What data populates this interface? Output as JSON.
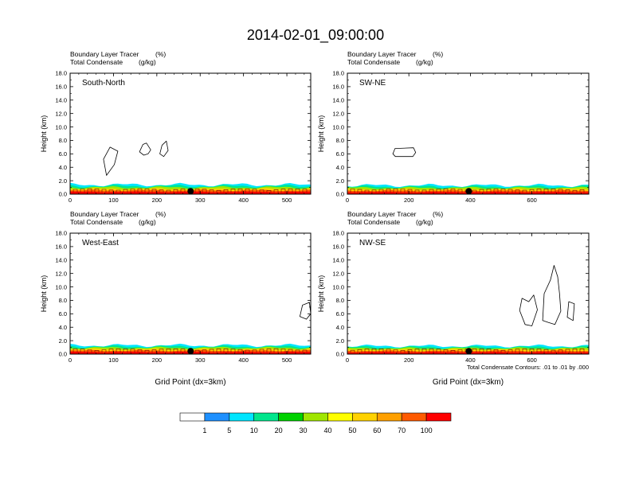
{
  "figure": {
    "title": "2014-02-01_09:00:00",
    "footnote": "Total Condensate Contours: .01 to .01 by .000"
  },
  "chart_data": {
    "type": "heatmap",
    "title": "2014-02-01_09:00:00",
    "panels": [
      {
        "name": "South-North",
        "label": "South-North",
        "field1": "Boundary Layer Tracer",
        "units1": "(%)",
        "field2": "Total Condensate",
        "units2": "(g/kg)",
        "ylabel": "Height (km)",
        "xlabel": "",
        "xlim": [
          0,
          555
        ],
        "xticks": [
          0,
          100,
          200,
          300,
          400,
          500
        ],
        "ylim": [
          0,
          18
        ],
        "yticks": [
          "0.0",
          "2.0",
          "4.0",
          "6.0",
          "8.0",
          "10.0",
          "12.0",
          "14.0",
          "16.0",
          "18.0"
        ],
        "marker_x": 278,
        "bl_top_km": 1.4,
        "cloud_contours": [
          [
            [
              77,
              5.2
            ],
            [
              92,
              7.0
            ],
            [
              110,
              6.4
            ],
            [
              102,
              4.4
            ],
            [
              84,
              2.8
            ]
          ],
          [
            [
              160,
              6.3
            ],
            [
              168,
              7.4
            ],
            [
              176,
              7.6
            ],
            [
              186,
              6.6
            ],
            [
              180,
              6.0
            ],
            [
              170,
              5.8
            ]
          ],
          [
            [
              207,
              6.0
            ],
            [
              212,
              7.3
            ],
            [
              222,
              7.9
            ],
            [
              226,
              6.5
            ],
            [
              216,
              5.6
            ]
          ]
        ]
      },
      {
        "name": "SW-NE",
        "label": "SW-NE",
        "field1": "Boundary Layer Tracer",
        "units1": "(%)",
        "field2": "Total Condensate",
        "units2": "(g/kg)",
        "ylabel": "Height (km)",
        "xlabel": "",
        "xlim": [
          0,
          785
        ],
        "xticks": [
          0,
          200,
          400,
          600
        ],
        "ylim": [
          0,
          18
        ],
        "yticks": [
          "0.0",
          "2.0",
          "4.0",
          "6.0",
          "8.0",
          "10.0",
          "12.0",
          "14.0",
          "16.0",
          "18.0"
        ],
        "marker_x": 395,
        "bl_top_km": 1.3,
        "cloud_contours": [
          [
            [
              148,
              6.0
            ],
            [
              155,
              6.8
            ],
            [
              215,
              6.9
            ],
            [
              222,
              6.2
            ],
            [
              213,
              5.6
            ],
            [
              156,
              5.6
            ]
          ]
        ]
      },
      {
        "name": "West-East",
        "label": "West-East",
        "field1": "Boundary Layer Tracer",
        "units1": "(%)",
        "field2": "Total Condensate",
        "units2": "(g/kg)",
        "ylabel": "Height (km)",
        "xlabel": "Grid Point (dx=3km)",
        "xlim": [
          0,
          555
        ],
        "xticks": [
          0,
          100,
          200,
          300,
          400,
          500
        ],
        "ylim": [
          0,
          18
        ],
        "yticks": [
          "0.0",
          "2.0",
          "4.0",
          "6.0",
          "8.0",
          "10.0",
          "12.0",
          "14.0",
          "16.0",
          "18.0"
        ],
        "marker_x": 278,
        "bl_top_km": 1.3,
        "cloud_contours": [
          [
            [
              530,
              5.6
            ],
            [
              536,
              7.3
            ],
            [
              552,
              7.7
            ],
            [
              555,
              6.0
            ],
            [
              545,
              5.2
            ]
          ]
        ]
      },
      {
        "name": "NW-SE",
        "label": "NW-SE",
        "field1": "Boundary Layer Tracer",
        "units1": "(%)",
        "field2": "Total Condensate",
        "units2": "(g/kg)",
        "ylabel": "Height (km)",
        "xlabel": "Grid Point (dx=3km)",
        "xlim": [
          0,
          785
        ],
        "xticks": [
          0,
          200,
          400,
          600
        ],
        "ylim": [
          0,
          18
        ],
        "yticks": [
          "0.0",
          "2.0",
          "4.0",
          "6.0",
          "8.0",
          "10.0",
          "12.0",
          "14.0",
          "16.0",
          "18.0"
        ],
        "marker_x": 395,
        "bl_top_km": 1.2,
        "cloud_contours": [
          [
            [
              560,
              6.5
            ],
            [
              568,
              8.3
            ],
            [
              590,
              7.8
            ],
            [
              606,
              8.8
            ],
            [
              618,
              6.6
            ],
            [
              600,
              4.2
            ],
            [
              578,
              4.4
            ]
          ],
          [
            [
              635,
              5.0
            ],
            [
              640,
              9.0
            ],
            [
              660,
              11.0
            ],
            [
              672,
              13.2
            ],
            [
              684,
              11.5
            ],
            [
              690,
              9.0
            ],
            [
              694,
              6.4
            ],
            [
              675,
              4.4
            ],
            [
              654,
              4.7
            ]
          ],
          [
            [
              715,
              5.5
            ],
            [
              720,
              7.8
            ],
            [
              738,
              7.5
            ],
            [
              734,
              5.0
            ]
          ]
        ]
      }
    ],
    "colorbar": {
      "labels": [
        "1",
        "5",
        "10",
        "20",
        "30",
        "40",
        "50",
        "60",
        "70",
        "100"
      ],
      "colors": [
        "#ffffff",
        "#1e90ff",
        "#00e5ff",
        "#00e68c",
        "#00d200",
        "#a0e600",
        "#ffff00",
        "#ffd200",
        "#ffa000",
        "#ff5a00",
        "#ff0000"
      ]
    }
  }
}
